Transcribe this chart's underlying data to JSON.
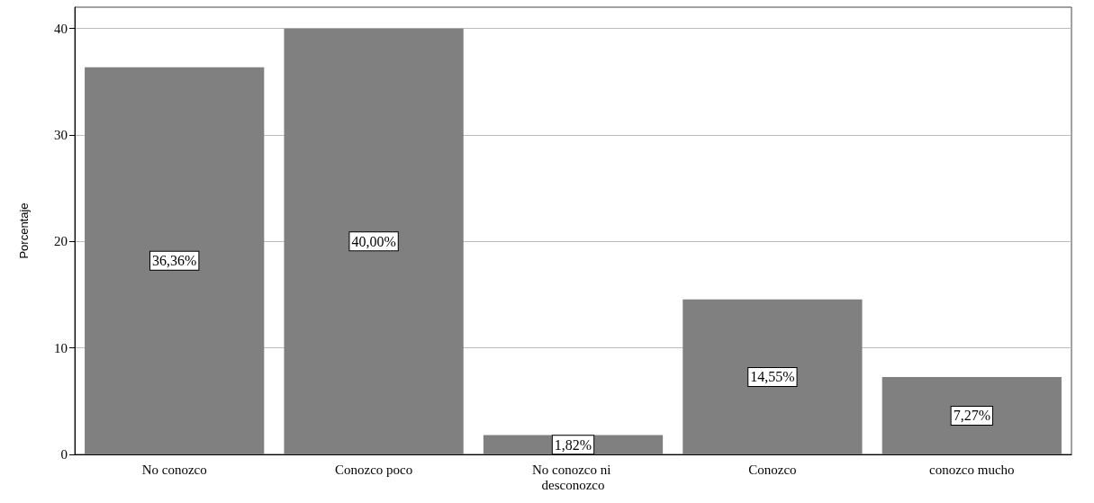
{
  "chart_data": {
    "type": "bar",
    "ylabel": "Porcentaje",
    "categories": [
      "No conozco",
      "Conozco poco",
      "No conozco ni desconozco",
      "Conozco",
      "conozco mucho"
    ],
    "values": [
      36.36,
      40.0,
      1.82,
      14.55,
      7.27
    ],
    "value_labels": [
      "36,36%",
      "40,00%",
      "1,82%",
      "14,55%",
      "7,27%"
    ],
    "color": "#808080",
    "ylim": [
      0,
      42
    ],
    "yticks": [
      0,
      10,
      20,
      30,
      40
    ],
    "grid": "y"
  }
}
